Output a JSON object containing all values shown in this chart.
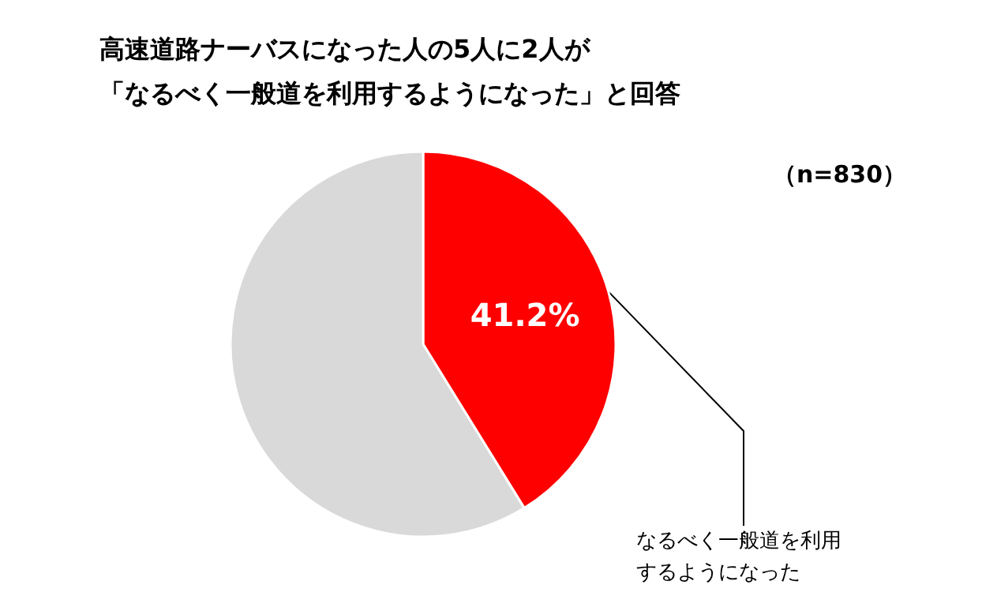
{
  "chart_data": {
    "type": "pie",
    "title": "高速道路ナーバスになった人の5人に2人が",
    "subtitle": "「なるべく一般道を利用するようになった」と回答",
    "categories": [
      "なるべく一般道を利用するようになった",
      null
    ],
    "values": [
      41.2,
      58.8
    ],
    "colors": [
      "#ff0000",
      "#d9d9d9"
    ],
    "value_labels": [
      "41.2%",
      null
    ],
    "annotations": [
      "（n=830）"
    ],
    "legend": false
  }
}
